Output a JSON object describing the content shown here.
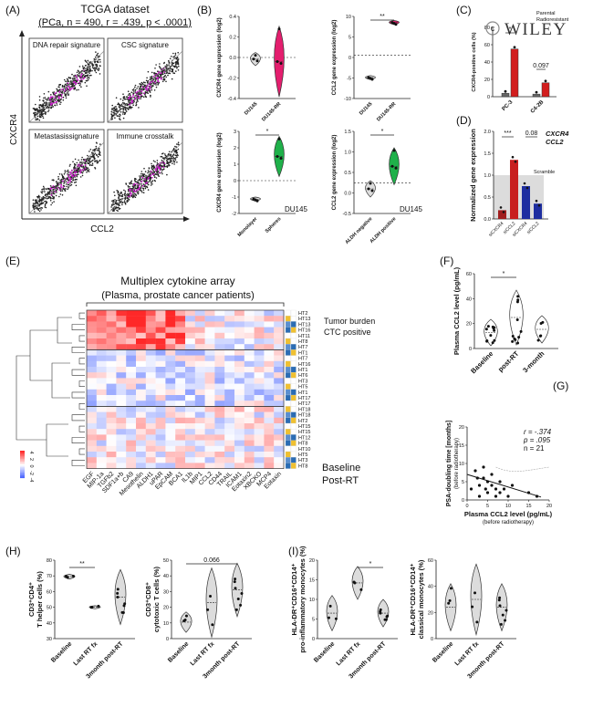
{
  "watermark": {
    "text": "WILEY"
  },
  "panels": {
    "A": {
      "label": "(A)",
      "title": "TCGA dataset",
      "subtitle": "(PCa, n = 490, r = .439, p < .0001)",
      "ylabel": "CXCR4",
      "xlabel": "CCL2",
      "subplots": [
        {
          "label": "DNA repair signature"
        },
        {
          "label": "CSC signature"
        },
        {
          "label": "Metastasissignature"
        },
        {
          "label": "Immune crosstalk"
        }
      ]
    },
    "B": {
      "label": "(B)",
      "plots": [
        {
          "ylabel": "CXCR4 gene expression (log2)",
          "categories": [
            "DU145",
            "DU145-RR"
          ],
          "yticks": [
            "0.4",
            "0.2",
            "0.0",
            "-0.2",
            "-0.4"
          ],
          "sig": ""
        },
        {
          "ylabel": "CCL2 gene expression (log2)",
          "categories": [
            "DU145",
            "DU145-RR"
          ],
          "yticks": [
            "10",
            "5",
            "0",
            "-5",
            "-10"
          ],
          "sig": "**"
        },
        {
          "ylabel": "CXCR4 gene expression (log2)",
          "categories": [
            "Monolayer",
            "Spheres"
          ],
          "yticks": [
            "3",
            "2",
            "1",
            "0",
            "-1",
            "-2"
          ],
          "sig": "*",
          "tag": "DU145"
        },
        {
          "ylabel": "CCL2 gene expression (log2)",
          "categories": [
            "ALDH negative",
            "ALDH positive"
          ],
          "yticks": [
            "1.5",
            "1.0",
            "0.5",
            "0.0",
            "-0.5"
          ],
          "sig": "*",
          "tag": "DU145"
        }
      ]
    },
    "C": {
      "label": "(C)",
      "ylabel": "CXCR4-positive cells (%)",
      "legend": [
        {
          "name": "Parental",
          "color": "#555555"
        },
        {
          "name": "Radioresistant",
          "color": "#d21e1e"
        }
      ],
      "categories": [
        "PC-3",
        "C4-2B"
      ],
      "yticks": [
        "80",
        "60",
        "40",
        "20",
        "0"
      ],
      "sig": [
        "*",
        "0.097"
      ]
    },
    "D": {
      "label": "(D)",
      "ylabel": "Normalized gene expression",
      "legend": [
        {
          "name": "CXCR4",
          "color": "#a01e1e"
        },
        {
          "name": "CCL2",
          "color": "#1e2ea0"
        }
      ],
      "categories": [
        "siCXCR4",
        "siCCL2",
        "siCXCR4",
        "siCCL2"
      ],
      "yticks": [
        "2.0",
        "1.5",
        "1.0",
        "0.5",
        "0.0"
      ],
      "scramble": "Scramble",
      "sig": [
        "***",
        "0.08"
      ]
    },
    "E": {
      "label": "(E)",
      "title": "Multiplex cytokine array",
      "subtitle": "(Plasma, prostate cancer patients)",
      "legend_tumor": "Tumor burden",
      "legend_ctc": "CTC positive",
      "legend_baseline": "Baseline",
      "legend_postrt": "Post-RT",
      "colorbar_ticks": [
        "4",
        "2",
        "0",
        "-2",
        "-4"
      ],
      "rows": [
        "HT2",
        "HT13",
        "HT13",
        "HT16",
        "HT11",
        "HT8",
        "HT7",
        "HT1",
        "HT7",
        "HT16",
        "HT1",
        "HT6",
        "HT3",
        "HT5",
        "HT1",
        "HT17",
        "HT17",
        "HT18",
        "HT18",
        "HT2",
        "HT15",
        "HT15",
        "HT12",
        "HT8",
        "HT10",
        "HT5",
        "HT3",
        "HT8"
      ],
      "cytokines": [
        "EGF",
        "MIP-1a",
        "TGFb2",
        "SDF1a+b",
        "CA9",
        "Mesothelin",
        "ALDH1",
        "uPAR",
        "EpCAM",
        "BCA1",
        "IL1b",
        "MIP1",
        "CCL2",
        "CD44",
        "TRAIL",
        "ICAM1",
        "Eotaxin2",
        "XBCKO",
        "MCP4",
        "Eotaxin"
      ]
    },
    "F": {
      "label": "(F)",
      "ylabel": "Plasma CCL2 level (pg/mL)",
      "categories": [
        "Baseline",
        "post-RT",
        "3-month"
      ],
      "yticks": [
        "60",
        "40",
        "20",
        "0"
      ],
      "sig": "*"
    },
    "G": {
      "label": "(G)",
      "ylabel": "PSA-doubling time [months]",
      "ylabel2": "(before radiotherapy)",
      "xlabel": "Plasma CCL2 level (pg/mL)",
      "xlabel2": "(before radiotherapy)",
      "xticks": [
        "0",
        "5",
        "10",
        "15",
        "20"
      ],
      "yticks": [
        "20",
        "15",
        "10",
        "5",
        "0"
      ],
      "stats": [
        "r = -.374",
        "p = .095",
        "n = 21"
      ]
    },
    "H": {
      "label": "(H)",
      "plots": [
        {
          "ylabel1": "CD3⁺CD4⁺",
          "ylabel2": "T helper cells (%)",
          "categories": [
            "Baseline",
            "Last RT fx",
            "3month post-RT"
          ],
          "yticks": [
            "80",
            "70",
            "60",
            "50",
            "40",
            "30"
          ],
          "sig": "**"
        },
        {
          "ylabel1": "CD3⁺CD8⁺",
          "ylabel2": "cytotoxic T cells (%)",
          "categories": [
            "Baseline",
            "Last RT fx",
            "3month post-RT"
          ],
          "yticks": [
            "50",
            "40",
            "30",
            "20",
            "10",
            "0"
          ],
          "sig": "0.066"
        }
      ]
    },
    "I": {
      "label": "(I)",
      "plots": [
        {
          "ylabel1": "HLA-DR⁺CD16⁺CD14⁺",
          "ylabel2": "pro-inflammatory monocytes (%)",
          "categories": [
            "Baseline",
            "Last RT fx",
            "3month post-RT"
          ],
          "yticks": [
            "20",
            "15",
            "10",
            "5",
            "0"
          ],
          "sig": "*"
        },
        {
          "ylabel1": "HLA-DR⁺CD16⁺CD14⁺",
          "ylabel2": "classical monocytes (%)",
          "categories": [
            "Baseline",
            "Last RT fx",
            "3month post-RT"
          ],
          "yticks": [
            "60",
            "40",
            "20",
            "0"
          ],
          "sig": ""
        }
      ]
    }
  }
}
